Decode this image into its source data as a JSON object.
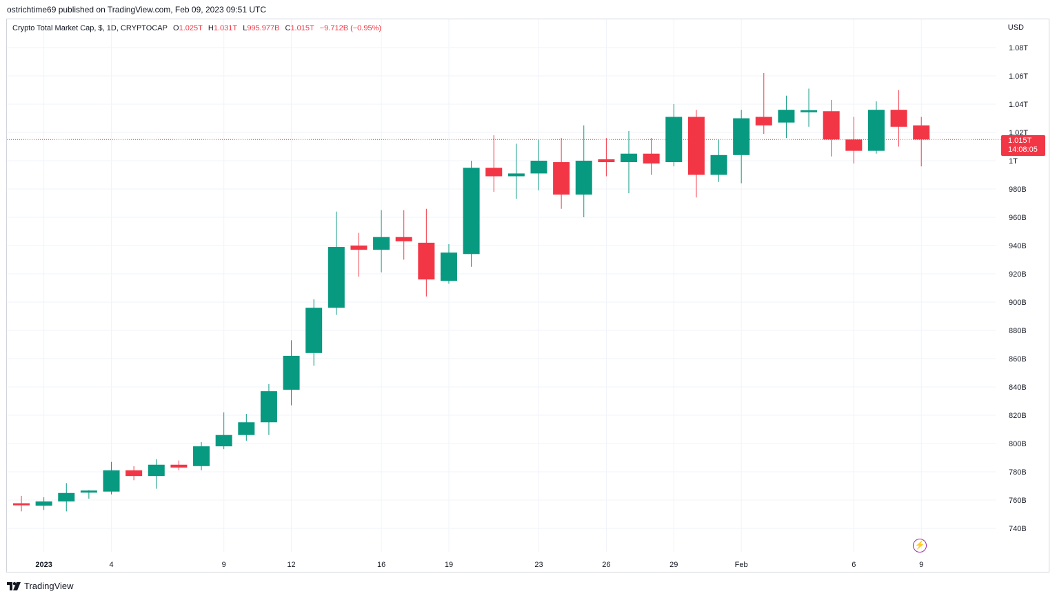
{
  "header": {
    "published": "ostrichtime69 published on TradingView.com, Feb 09, 2023 09:51 UTC"
  },
  "legend": {
    "symbol": "Crypto Total Market Cap, $, 1D, CRYPTOCAP",
    "open_label": "O",
    "open": "1.025T",
    "high_label": "H",
    "high": "1.031T",
    "low_label": "L",
    "low": "995.977B",
    "close_label": "C",
    "close": "1.015T",
    "change": "−9.712B (−0.95%)"
  },
  "currency": "USD",
  "last_price": {
    "price": "1.015T",
    "countdown": "14:08:05",
    "value": 1015
  },
  "brand": {
    "name": "TradingView"
  },
  "colors": {
    "up": "#089981",
    "down": "#f23645",
    "grid": "#f0f3fa",
    "text": "#131722",
    "bolt": "#9c27b0"
  },
  "icons": {
    "bolt": "lightning-bolt-icon",
    "logo": "tradingview-logo-icon"
  },
  "chart_data": {
    "type": "candlestick",
    "unit": "B",
    "y_ticks": [
      {
        "value": 740,
        "label": "740B"
      },
      {
        "value": 760,
        "label": "760B"
      },
      {
        "value": 780,
        "label": "780B"
      },
      {
        "value": 800,
        "label": "800B"
      },
      {
        "value": 820,
        "label": "820B"
      },
      {
        "value": 840,
        "label": "840B"
      },
      {
        "value": 860,
        "label": "860B"
      },
      {
        "value": 880,
        "label": "880B"
      },
      {
        "value": 900,
        "label": "900B"
      },
      {
        "value": 920,
        "label": "920B"
      },
      {
        "value": 940,
        "label": "940B"
      },
      {
        "value": 960,
        "label": "960B"
      },
      {
        "value": 980,
        "label": "980B"
      },
      {
        "value": 1000,
        "label": "1T"
      },
      {
        "value": 1020,
        "label": "1.02T"
      },
      {
        "value": 1040,
        "label": "1.04T"
      },
      {
        "value": 1060,
        "label": "1.06T"
      },
      {
        "value": 1080,
        "label": "1.08T"
      }
    ],
    "x_ticks": [
      {
        "index": 1,
        "label": "2023",
        "bold": true
      },
      {
        "index": 4,
        "label": "4"
      },
      {
        "index": 9,
        "label": "9"
      },
      {
        "index": 12,
        "label": "12"
      },
      {
        "index": 16,
        "label": "16"
      },
      {
        "index": 19,
        "label": "19"
      },
      {
        "index": 23,
        "label": "23"
      },
      {
        "index": 26,
        "label": "26"
      },
      {
        "index": 29,
        "label": "29"
      },
      {
        "index": 32,
        "label": "Feb"
      },
      {
        "index": 37,
        "label": "6"
      },
      {
        "index": 40,
        "label": "9"
      }
    ],
    "ylim": [
      730,
      1090
    ],
    "candles": [
      {
        "date": "2022-12-31",
        "o": 757,
        "h": 763,
        "l": 752,
        "c": 756
      },
      {
        "date": "2023-01-01",
        "o": 756,
        "h": 762,
        "l": 753,
        "c": 759
      },
      {
        "date": "2023-01-02",
        "o": 759,
        "h": 772,
        "l": 752,
        "c": 765
      },
      {
        "date": "2023-01-03",
        "o": 765,
        "h": 767,
        "l": 761,
        "c": 766
      },
      {
        "date": "2023-01-04",
        "o": 766,
        "h": 787,
        "l": 764,
        "c": 781
      },
      {
        "date": "2023-01-05",
        "o": 781,
        "h": 784,
        "l": 774,
        "c": 777
      },
      {
        "date": "2023-01-06",
        "o": 777,
        "h": 789,
        "l": 768,
        "c": 785
      },
      {
        "date": "2023-01-07",
        "o": 785,
        "h": 788,
        "l": 781,
        "c": 783
      },
      {
        "date": "2023-01-08",
        "o": 784,
        "h": 801,
        "l": 781,
        "c": 798
      },
      {
        "date": "2023-01-09",
        "o": 798,
        "h": 822,
        "l": 796,
        "c": 806
      },
      {
        "date": "2023-01-10",
        "o": 806,
        "h": 821,
        "l": 802,
        "c": 815
      },
      {
        "date": "2023-01-11",
        "o": 815,
        "h": 842,
        "l": 806,
        "c": 837
      },
      {
        "date": "2023-01-12",
        "o": 838,
        "h": 873,
        "l": 827,
        "c": 862
      },
      {
        "date": "2023-01-13",
        "o": 864,
        "h": 902,
        "l": 855,
        "c": 896
      },
      {
        "date": "2023-01-14",
        "o": 896,
        "h": 964,
        "l": 891,
        "c": 939
      },
      {
        "date": "2023-01-15",
        "o": 940,
        "h": 949,
        "l": 918,
        "c": 937
      },
      {
        "date": "2023-01-16",
        "o": 937,
        "h": 965,
        "l": 921,
        "c": 946
      },
      {
        "date": "2023-01-17",
        "o": 946,
        "h": 965,
        "l": 930,
        "c": 943
      },
      {
        "date": "2023-01-18",
        "o": 942,
        "h": 966,
        "l": 904,
        "c": 916
      },
      {
        "date": "2023-01-19",
        "o": 915,
        "h": 941,
        "l": 913,
        "c": 935
      },
      {
        "date": "2023-01-20",
        "o": 934,
        "h": 1000,
        "l": 925,
        "c": 995
      },
      {
        "date": "2023-01-21",
        "o": 995,
        "h": 1018,
        "l": 978,
        "c": 989
      },
      {
        "date": "2023-01-22",
        "o": 989,
        "h": 1012,
        "l": 973,
        "c": 991
      },
      {
        "date": "2023-01-23",
        "o": 991,
        "h": 1015,
        "l": 979,
        "c": 1000
      },
      {
        "date": "2023-01-24",
        "o": 999,
        "h": 1016,
        "l": 966,
        "c": 976
      },
      {
        "date": "2023-01-25",
        "o": 976,
        "h": 1025,
        "l": 960,
        "c": 1000
      },
      {
        "date": "2023-01-26",
        "o": 1001,
        "h": 1016,
        "l": 989,
        "c": 999
      },
      {
        "date": "2023-01-27",
        "o": 999,
        "h": 1021,
        "l": 977,
        "c": 1005
      },
      {
        "date": "2023-01-28",
        "o": 1005,
        "h": 1016,
        "l": 990,
        "c": 998
      },
      {
        "date": "2023-01-29",
        "o": 999,
        "h": 1040,
        "l": 996,
        "c": 1031
      },
      {
        "date": "2023-01-30",
        "o": 1031,
        "h": 1036,
        "l": 974,
        "c": 990
      },
      {
        "date": "2023-01-31",
        "o": 990,
        "h": 1015,
        "l": 985,
        "c": 1004
      },
      {
        "date": "2023-02-01",
        "o": 1004,
        "h": 1036,
        "l": 984,
        "c": 1030
      },
      {
        "date": "2023-02-02",
        "o": 1031,
        "h": 1062,
        "l": 1019,
        "c": 1025
      },
      {
        "date": "2023-02-03",
        "o": 1027,
        "h": 1046,
        "l": 1016,
        "c": 1036
      },
      {
        "date": "2023-02-04",
        "o": 1035,
        "h": 1051,
        "l": 1024,
        "c": 1035
      },
      {
        "date": "2023-02-05",
        "o": 1035,
        "h": 1043,
        "l": 1003,
        "c": 1015
      },
      {
        "date": "2023-02-06",
        "o": 1015,
        "h": 1031,
        "l": 998,
        "c": 1007
      },
      {
        "date": "2023-02-07",
        "o": 1007,
        "h": 1042,
        "l": 1005,
        "c": 1036
      },
      {
        "date": "2023-02-08",
        "o": 1036,
        "h": 1050,
        "l": 1010,
        "c": 1024
      },
      {
        "date": "2023-02-09",
        "o": 1025,
        "h": 1031,
        "l": 996,
        "c": 1015
      }
    ]
  }
}
